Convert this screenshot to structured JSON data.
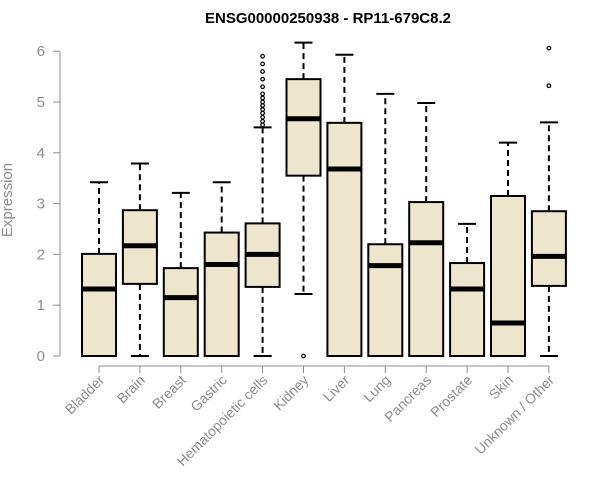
{
  "chart_data": {
    "type": "box",
    "title": "ENSG00000250938 - RP11-679C8.2",
    "ylabel": "Expression",
    "xlabel": "",
    "ylim": [
      0,
      6.3
    ],
    "yticks": [
      0,
      1,
      2,
      3,
      4,
      5,
      6
    ],
    "box_fill": "#ede6cc",
    "categories": [
      "Bladder",
      "Brain",
      "Breast",
      "Gastric",
      "Hematopoietic cells",
      "Kidney",
      "Liver",
      "Lung",
      "Pancreas",
      "Prostate",
      "Skin",
      "Unknown / Other"
    ],
    "boxes": [
      {
        "whisker_low": 0,
        "q1": 0,
        "median": 1.32,
        "q3": 2.01,
        "whisker_high": 3.42,
        "outliers": []
      },
      {
        "whisker_low": 0,
        "q1": 1.42,
        "median": 2.17,
        "q3": 2.87,
        "whisker_high": 3.79,
        "outliers": []
      },
      {
        "whisker_low": 0,
        "q1": 0,
        "median": 1.15,
        "q3": 1.73,
        "whisker_high": 3.21,
        "outliers": []
      },
      {
        "whisker_low": 0,
        "q1": 0,
        "median": 1.8,
        "q3": 2.43,
        "whisker_high": 3.42,
        "outliers": []
      },
      {
        "whisker_low": 0,
        "q1": 1.36,
        "median": 2.0,
        "q3": 2.61,
        "whisker_high": 4.5,
        "outliers": [
          4.55,
          4.62,
          4.7,
          4.78,
          4.85,
          4.93,
          5.0,
          5.08,
          5.16,
          5.3,
          5.45,
          5.6,
          5.75,
          5.9
        ]
      },
      {
        "whisker_low": 1.22,
        "q1": 3.55,
        "median": 4.67,
        "q3": 5.45,
        "whisker_high": 6.17,
        "outliers": [
          0
        ]
      },
      {
        "whisker_low": 0,
        "q1": 0,
        "median": 3.68,
        "q3": 4.59,
        "whisker_high": 5.93,
        "outliers": []
      },
      {
        "whisker_low": 0,
        "q1": 0,
        "median": 1.78,
        "q3": 2.2,
        "whisker_high": 5.16,
        "outliers": []
      },
      {
        "whisker_low": 0,
        "q1": 0,
        "median": 2.23,
        "q3": 3.03,
        "whisker_high": 4.98,
        "outliers": []
      },
      {
        "whisker_low": 0,
        "q1": 0,
        "median": 1.32,
        "q3": 1.83,
        "whisker_high": 2.6,
        "outliers": []
      },
      {
        "whisker_low": 0,
        "q1": 0,
        "median": 0.65,
        "q3": 3.15,
        "whisker_high": 4.2,
        "outliers": []
      },
      {
        "whisker_low": 0,
        "q1": 1.38,
        "median": 1.96,
        "q3": 2.85,
        "whisker_high": 4.6,
        "outliers": [
          5.32,
          6.06
        ]
      }
    ]
  }
}
